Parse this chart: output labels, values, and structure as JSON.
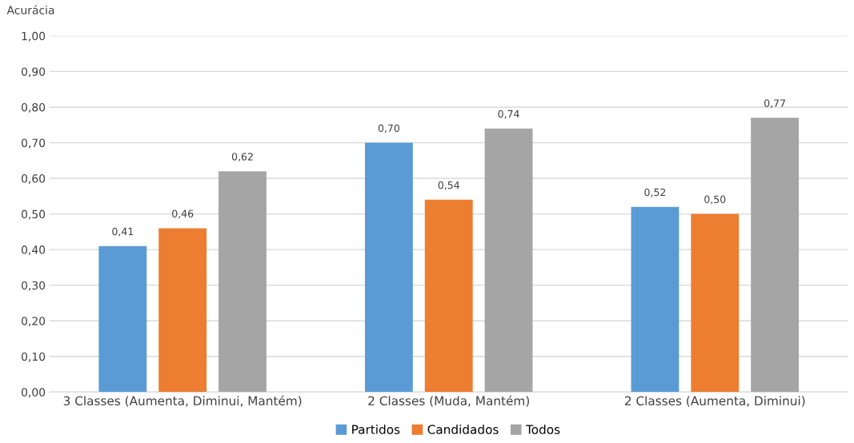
{
  "chart_data": {
    "type": "bar",
    "ylabel": "Acurácia",
    "categories": [
      "3 Classes (Aumenta, Diminui, Mantém)",
      "2 Classes (Muda, Mantém)",
      "2 Classes (Aumenta, Diminui)"
    ],
    "series": [
      {
        "name": "Partidos",
        "color": "#5b9bd5",
        "values": [
          0.41,
          0.7,
          0.52
        ],
        "value_labels": [
          "0,41",
          "0,70",
          "0,52"
        ]
      },
      {
        "name": "Candidados",
        "color": "#ed7d31",
        "values": [
          0.46,
          0.54,
          0.5
        ],
        "value_labels": [
          "0,46",
          "0,54",
          "0,50"
        ]
      },
      {
        "name": "Todos",
        "color": "#a5a5a5",
        "values": [
          0.62,
          0.74,
          0.77
        ],
        "value_labels": [
          "0,62",
          "0,74",
          "0,77"
        ]
      }
    ],
    "ylim": [
      0,
      1
    ],
    "yticks": [
      {
        "value": 0,
        "label": "0,00"
      },
      {
        "value": 0.1,
        "label": "0,10"
      },
      {
        "value": 0.2,
        "label": "0,20"
      },
      {
        "value": 0.3,
        "label": "0,30"
      },
      {
        "value": 0.4,
        "label": "0,40"
      },
      {
        "value": 0.5,
        "label": "0,50"
      },
      {
        "value": 0.6,
        "label": "0,60"
      },
      {
        "value": 0.7,
        "label": "0,70"
      },
      {
        "value": 0.8,
        "label": "0,80"
      },
      {
        "value": 0.9,
        "label": "0,90"
      },
      {
        "value": 1,
        "label": "1,00"
      }
    ],
    "grid": "y",
    "legend": "bottom"
  }
}
